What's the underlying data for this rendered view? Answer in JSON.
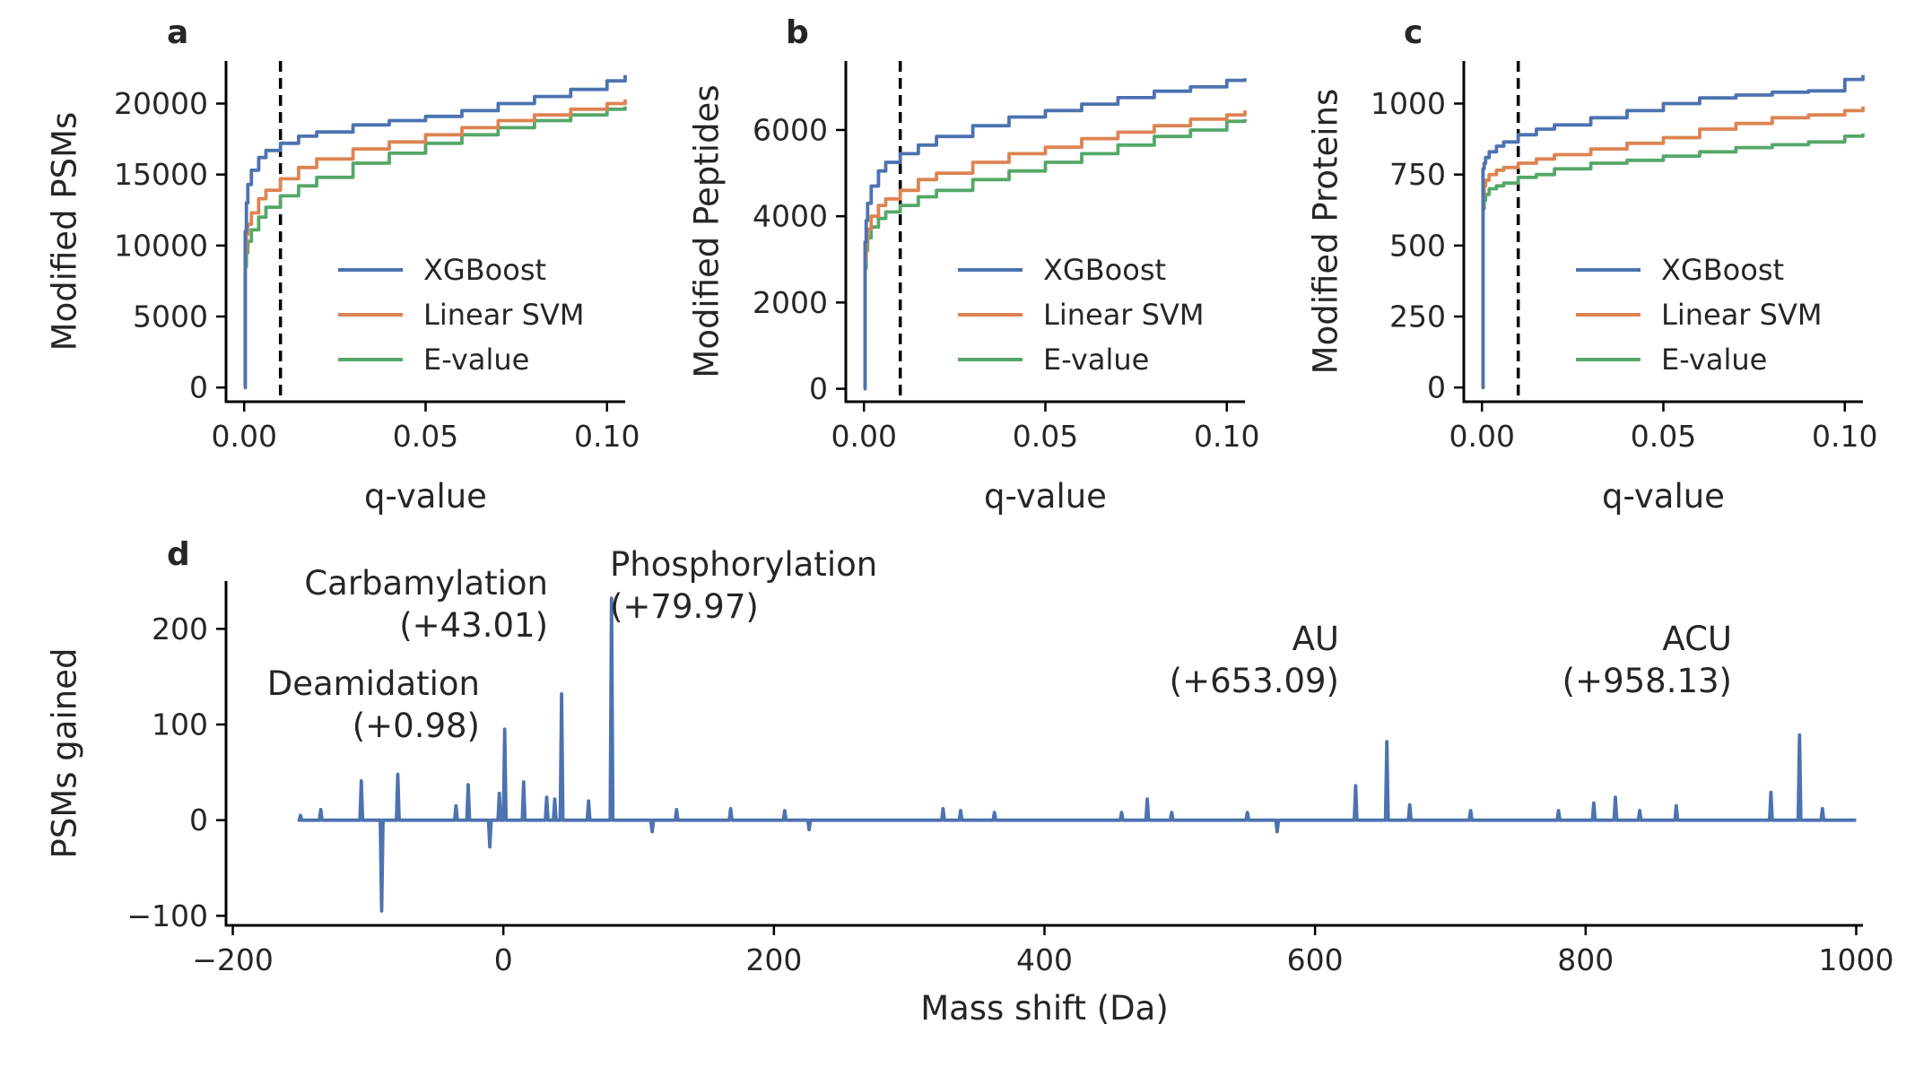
{
  "chart_data": [
    {
      "type": "line",
      "panel_label": "a",
      "xlabel": "q-value",
      "ylabel": "Modified PSMs",
      "xlim": [
        -0.005,
        0.105
      ],
      "ylim": [
        -1000,
        23000
      ],
      "xticks": [
        0.0,
        0.05,
        0.1
      ],
      "xtick_labels": [
        "0.00",
        "0.05",
        "0.10"
      ],
      "yticks": [
        0,
        5000,
        10000,
        15000,
        20000
      ],
      "ytick_labels": [
        "0",
        "5000",
        "10000",
        "15000",
        "20000"
      ],
      "threshold_line": 0.01,
      "legend_position": "lower-right",
      "series": [
        {
          "name": "XGBoost",
          "color": "#4c72b0",
          "x": [
            0.0,
            0.0003,
            0.0006,
            0.001,
            0.002,
            0.004,
            0.006,
            0.01,
            0.015,
            0.02,
            0.03,
            0.04,
            0.05,
            0.06,
            0.07,
            0.08,
            0.09,
            0.1,
            0.105
          ],
          "y": [
            0,
            11000,
            13000,
            14300,
            15300,
            16200,
            16700,
            17200,
            17700,
            18000,
            18500,
            18800,
            19100,
            19500,
            20000,
            20500,
            21000,
            21600,
            22000
          ]
        },
        {
          "name": "Linear SVM",
          "color": "#dd8452",
          "x": [
            0.0,
            0.0003,
            0.0006,
            0.001,
            0.002,
            0.004,
            0.006,
            0.01,
            0.015,
            0.02,
            0.03,
            0.04,
            0.05,
            0.06,
            0.07,
            0.08,
            0.09,
            0.1,
            0.105
          ],
          "y": [
            0,
            9500,
            10800,
            11500,
            12300,
            13300,
            13900,
            14700,
            15500,
            16100,
            16800,
            17300,
            17800,
            18300,
            18800,
            19200,
            19600,
            20000,
            20300
          ]
        },
        {
          "name": "E-value",
          "color": "#55a868",
          "x": [
            0.0,
            0.0003,
            0.0006,
            0.001,
            0.002,
            0.004,
            0.006,
            0.01,
            0.015,
            0.02,
            0.03,
            0.04,
            0.05,
            0.06,
            0.07,
            0.08,
            0.09,
            0.1,
            0.105
          ],
          "y": [
            0,
            8500,
            9500,
            10300,
            11100,
            12000,
            12700,
            13500,
            14200,
            14800,
            15800,
            16500,
            17200,
            17800,
            18300,
            18800,
            19200,
            19600,
            19800
          ]
        }
      ]
    },
    {
      "type": "line",
      "panel_label": "b",
      "xlabel": "q-value",
      "ylabel": "Modified Peptides",
      "xlim": [
        -0.005,
        0.105
      ],
      "ylim": [
        -300,
        7600
      ],
      "xticks": [
        0.0,
        0.05,
        0.1
      ],
      "xtick_labels": [
        "0.00",
        "0.05",
        "0.10"
      ],
      "yticks": [
        0,
        2000,
        4000,
        6000
      ],
      "ytick_labels": [
        "0",
        "2000",
        "4000",
        "6000"
      ],
      "threshold_line": 0.01,
      "legend_position": "lower-right",
      "series": [
        {
          "name": "XGBoost",
          "color": "#4c72b0",
          "x": [
            0.0,
            0.0003,
            0.0006,
            0.001,
            0.002,
            0.004,
            0.006,
            0.01,
            0.015,
            0.02,
            0.03,
            0.04,
            0.05,
            0.06,
            0.07,
            0.08,
            0.09,
            0.1,
            0.105
          ],
          "y": [
            0,
            3400,
            3900,
            4300,
            4700,
            5050,
            5250,
            5450,
            5650,
            5850,
            6100,
            6300,
            6450,
            6600,
            6750,
            6900,
            7000,
            7150,
            7200
          ]
        },
        {
          "name": "Linear SVM",
          "color": "#dd8452",
          "x": [
            0.0,
            0.0003,
            0.0006,
            0.001,
            0.002,
            0.004,
            0.006,
            0.01,
            0.015,
            0.02,
            0.03,
            0.04,
            0.05,
            0.06,
            0.07,
            0.08,
            0.09,
            0.1,
            0.105
          ],
          "y": [
            0,
            3000,
            3400,
            3700,
            4000,
            4250,
            4400,
            4600,
            4850,
            5000,
            5250,
            5450,
            5600,
            5800,
            5950,
            6100,
            6250,
            6350,
            6450
          ]
        },
        {
          "name": "E-value",
          "color": "#55a868",
          "x": [
            0.0,
            0.0003,
            0.0006,
            0.001,
            0.002,
            0.004,
            0.006,
            0.01,
            0.015,
            0.02,
            0.03,
            0.04,
            0.05,
            0.06,
            0.07,
            0.08,
            0.09,
            0.1,
            0.105
          ],
          "y": [
            0,
            2800,
            3200,
            3500,
            3750,
            3950,
            4100,
            4250,
            4450,
            4600,
            4850,
            5050,
            5250,
            5450,
            5650,
            5850,
            6000,
            6200,
            6250
          ]
        }
      ]
    },
    {
      "type": "line",
      "panel_label": "c",
      "xlabel": "q-value",
      "ylabel": "Modified Proteins",
      "xlim": [
        -0.005,
        0.105
      ],
      "ylim": [
        -50,
        1150
      ],
      "xticks": [
        0.0,
        0.05,
        0.1
      ],
      "xtick_labels": [
        "0.00",
        "0.05",
        "0.10"
      ],
      "yticks": [
        0,
        250,
        500,
        750,
        1000
      ],
      "ytick_labels": [
        "0",
        "250",
        "500",
        "750",
        "1000"
      ],
      "threshold_line": 0.01,
      "legend_position": "lower-right",
      "series": [
        {
          "name": "XGBoost",
          "color": "#4c72b0",
          "x": [
            0.0,
            0.0003,
            0.0006,
            0.001,
            0.002,
            0.004,
            0.006,
            0.01,
            0.015,
            0.02,
            0.03,
            0.04,
            0.05,
            0.06,
            0.07,
            0.08,
            0.09,
            0.1,
            0.105
          ],
          "y": [
            0,
            770,
            790,
            810,
            830,
            850,
            865,
            890,
            910,
            925,
            950,
            975,
            1000,
            1020,
            1030,
            1040,
            1045,
            1085,
            1100
          ]
        },
        {
          "name": "Linear SVM",
          "color": "#dd8452",
          "x": [
            0.0,
            0.0003,
            0.0006,
            0.001,
            0.002,
            0.004,
            0.006,
            0.01,
            0.015,
            0.02,
            0.03,
            0.04,
            0.05,
            0.06,
            0.07,
            0.08,
            0.09,
            0.1,
            0.105
          ],
          "y": [
            0,
            680,
            710,
            730,
            750,
            765,
            775,
            790,
            805,
            820,
            840,
            860,
            880,
            910,
            930,
            950,
            960,
            975,
            990
          ]
        },
        {
          "name": "E-value",
          "color": "#55a868",
          "x": [
            0.0,
            0.0003,
            0.0006,
            0.001,
            0.002,
            0.004,
            0.006,
            0.01,
            0.015,
            0.02,
            0.03,
            0.04,
            0.05,
            0.06,
            0.07,
            0.08,
            0.09,
            0.1,
            0.105
          ],
          "y": [
            0,
            630,
            660,
            680,
            700,
            710,
            720,
            740,
            750,
            770,
            790,
            800,
            815,
            830,
            845,
            855,
            865,
            885,
            895
          ]
        }
      ]
    },
    {
      "type": "line",
      "panel_label": "d",
      "xlabel": "Mass shift (Da)",
      "ylabel": "PSMs gained",
      "xlim": [
        -205,
        1005
      ],
      "ylim": [
        -110,
        250
      ],
      "xticks": [
        -200,
        0,
        200,
        400,
        600,
        800,
        1000
      ],
      "xtick_labels": [
        "−200",
        "0",
        "200",
        "400",
        "600",
        "800",
        "1000"
      ],
      "yticks": [
        -100,
        0,
        100,
        200
      ],
      "ytick_labels": [
        "−100",
        "0",
        "100",
        "200"
      ],
      "baseline": {
        "x_start": -150,
        "x_end": 1000,
        "y": 0
      },
      "series": [
        {
          "name": "",
          "color": "#4c72b0",
          "x": [
            -150,
            -135,
            -105,
            -90,
            -78,
            -35,
            -26,
            -10,
            -3,
            0.98,
            15,
            32,
            38,
            43.01,
            63,
            79.97,
            110,
            128,
            168,
            208,
            226,
            325,
            338,
            363,
            457,
            476,
            494,
            550,
            572,
            630,
            653.09,
            670,
            715,
            780,
            806,
            822,
            840,
            867,
            937,
            958.13,
            975
          ],
          "y": [
            5,
            11,
            41,
            -95,
            48,
            15,
            37,
            -28,
            28,
            95,
            40,
            24,
            22,
            132,
            20,
            232,
            -12,
            11,
            12,
            10,
            -10,
            12,
            10,
            8,
            8,
            22,
            8,
            8,
            -12,
            36,
            82,
            16,
            10,
            10,
            18,
            24,
            10,
            15,
            29,
            89,
            12
          ]
        }
      ],
      "annotations": [
        {
          "text": [
            "Deamidation",
            "(+0.98)"
          ],
          "x": 0.98
        },
        {
          "text": [
            "Carbamylation",
            "(+43.01)"
          ],
          "x": 43.01
        },
        {
          "text": [
            "Phosphorylation",
            "(+79.97)"
          ],
          "x": 79.97
        },
        {
          "text": [
            "AU",
            "(+653.09)"
          ],
          "x": 653.09
        },
        {
          "text": [
            "ACU",
            "(+958.13)"
          ],
          "x": 958.13
        }
      ]
    }
  ]
}
